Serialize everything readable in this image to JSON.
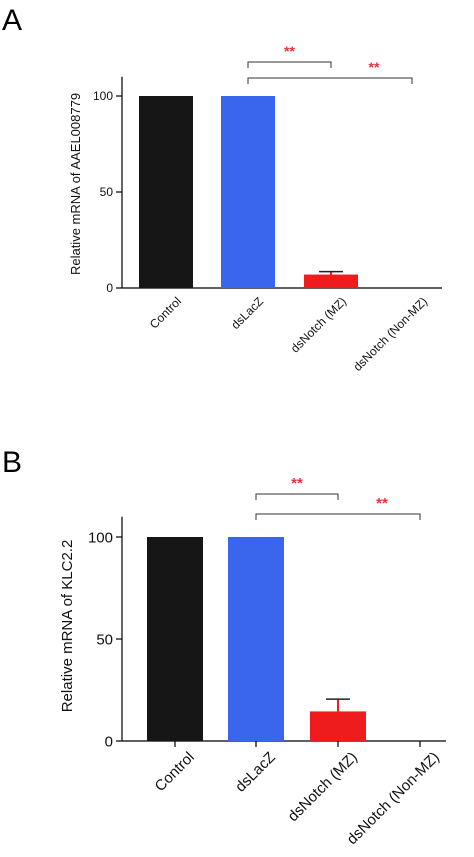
{
  "chart_data": [
    {
      "type": "bar",
      "panel": "A",
      "ylabel": "Relative mRNA of AAEL008779",
      "categories": [
        "Control",
        "dsLacZ",
        "dsNotch (MZ)",
        "dsNotch (Non-MZ)"
      ],
      "values": [
        100,
        100,
        7,
        0
      ],
      "errors": [
        0,
        0,
        1.5,
        0
      ],
      "colors": [
        "#161616",
        "#3a66ee",
        "#ee1c1c",
        "#ee1c1c"
      ],
      "ylim": [
        0,
        110
      ],
      "yticks": [
        "0",
        "50",
        "100"
      ],
      "significance": [
        {
          "from": 1,
          "to": 2,
          "label": "**"
        },
        {
          "from": 1,
          "to": 3,
          "label": "**"
        }
      ],
      "sig_color": "#e8323c"
    },
    {
      "type": "bar",
      "panel": "B",
      "ylabel": "Relative mRNA of KLC2.2",
      "categories": [
        "Control",
        "dsLacZ",
        "dsNotch (MZ)",
        "dsNotch (Non-MZ)"
      ],
      "values": [
        100,
        100,
        14.5,
        0
      ],
      "errors": [
        0,
        0,
        6,
        0
      ],
      "colors": [
        "#161616",
        "#3a66ee",
        "#ee1c1c",
        "#ee1c1c"
      ],
      "ylim": [
        0,
        110
      ],
      "yticks": [
        "0",
        "50",
        "100"
      ],
      "significance": [
        {
          "from": 1,
          "to": 2,
          "label": "**"
        },
        {
          "from": 1,
          "to": 3,
          "label": "**"
        }
      ],
      "sig_color": "#e8323c"
    }
  ]
}
